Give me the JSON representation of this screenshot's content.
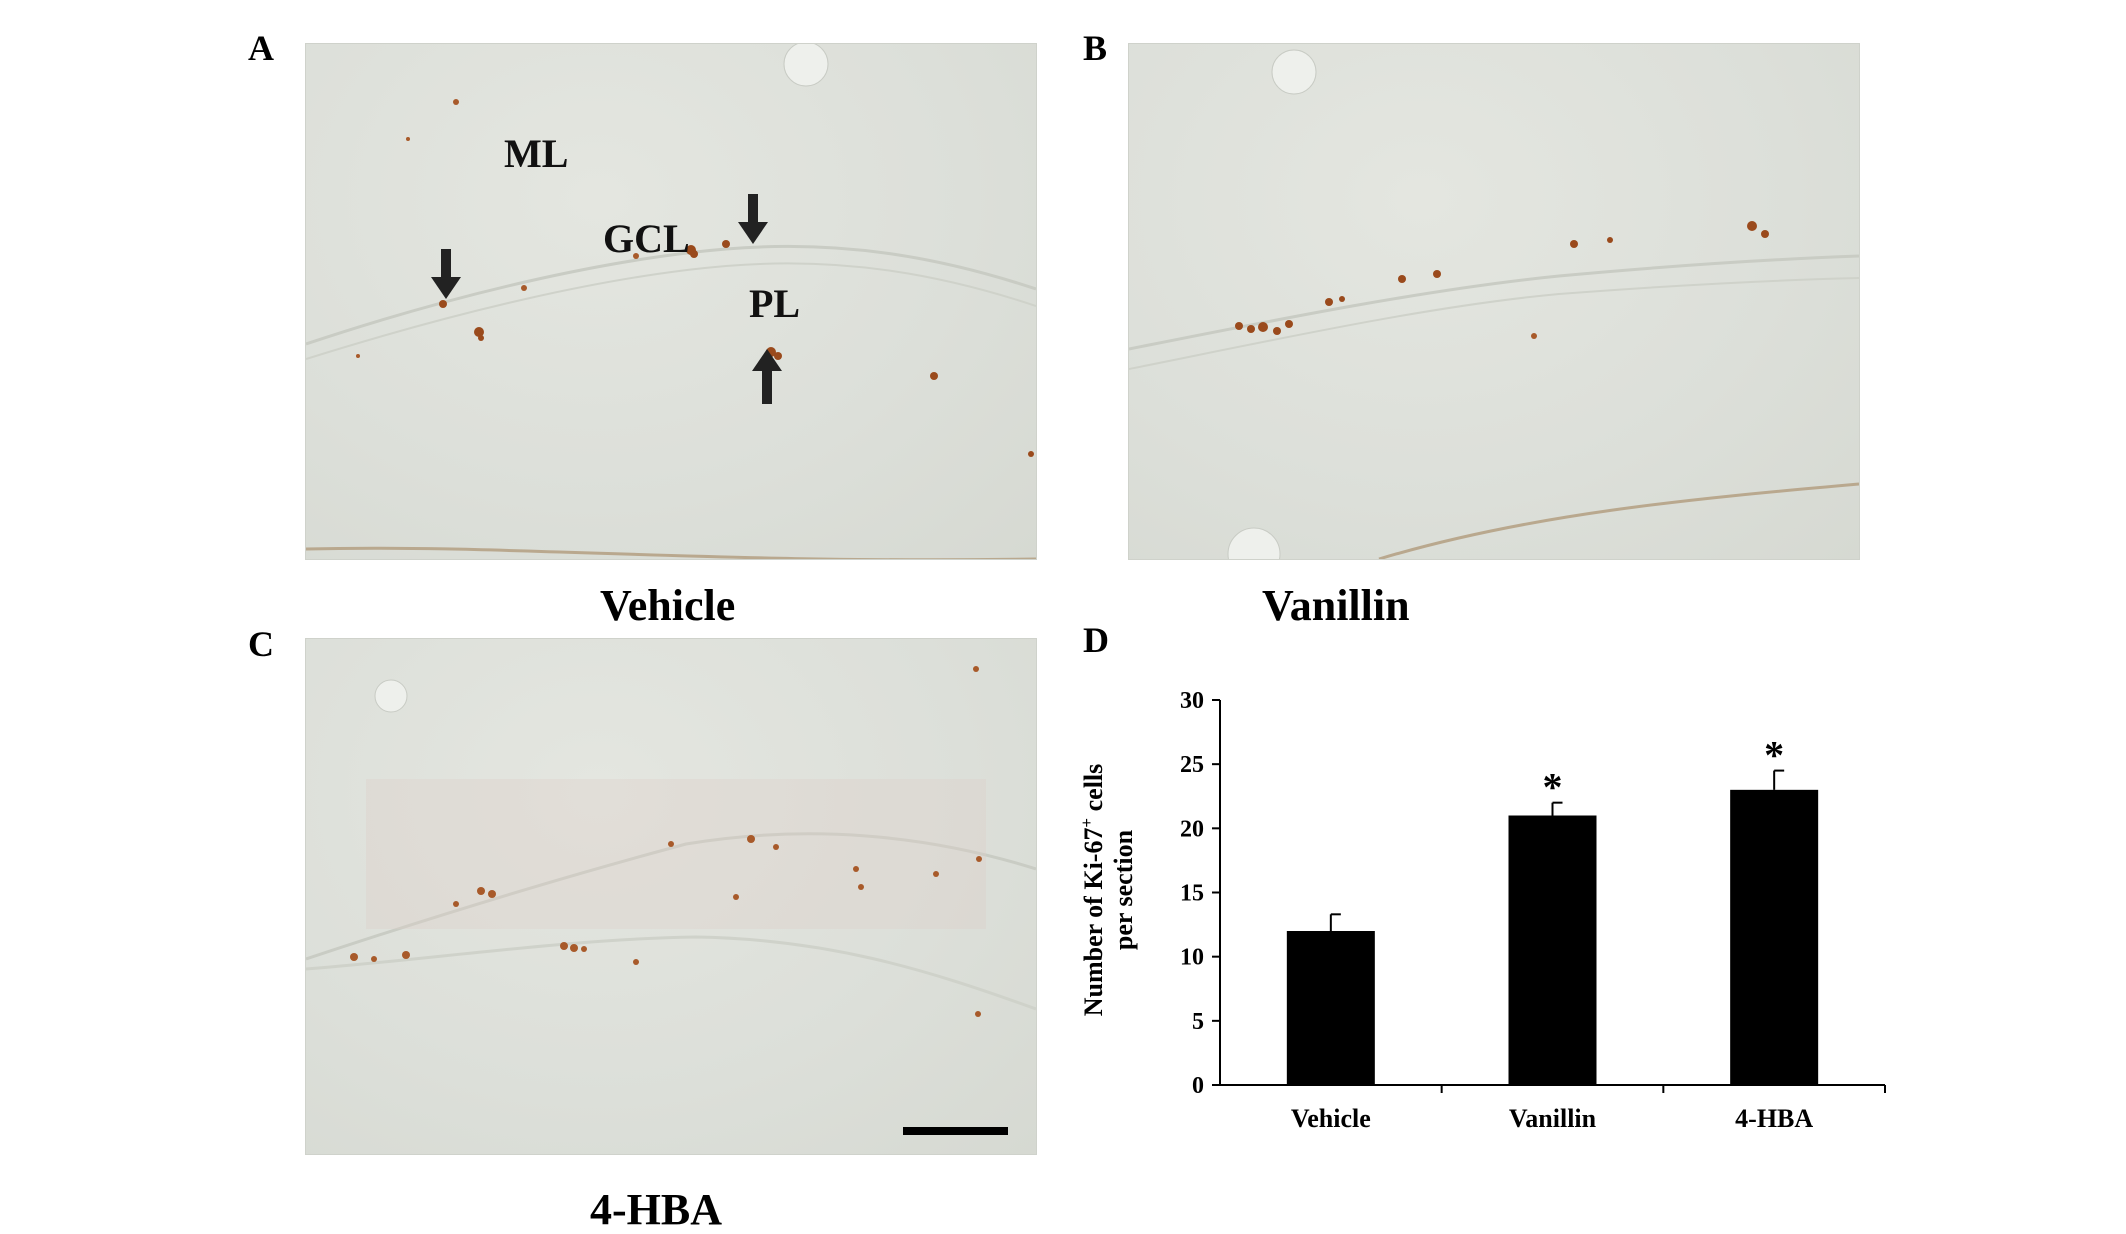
{
  "panels": {
    "A": {
      "letter": "A",
      "label": "Vehicle",
      "regions": {
        "ml": "ML",
        "gcl": "GCL",
        "pl": "PL"
      }
    },
    "B": {
      "letter": "B",
      "label": "Vanillin"
    },
    "C": {
      "letter": "C",
      "label": "4-HBA"
    },
    "D": {
      "letter": "D"
    }
  },
  "colors": {
    "stain": "#9a4a1c",
    "tissue": "#dcdfd9",
    "bar": "#000000"
  },
  "chart_data": {
    "type": "bar",
    "categories": [
      "Vehicle",
      "Vanillin",
      "4-HBA"
    ],
    "values": [
      12,
      21,
      23
    ],
    "error": [
      1.3,
      1.0,
      1.5
    ],
    "significance": [
      "",
      "*",
      "*"
    ],
    "ylabel_line1": "Number of Ki-67",
    "ylabel_sup": "+",
    "ylabel_line1_tail": " cells",
    "ylabel_line2": "per section",
    "ylim": [
      0,
      30
    ],
    "yticks": [
      0,
      5,
      10,
      15,
      20,
      25,
      30
    ],
    "grid": false,
    "legend": "none"
  }
}
